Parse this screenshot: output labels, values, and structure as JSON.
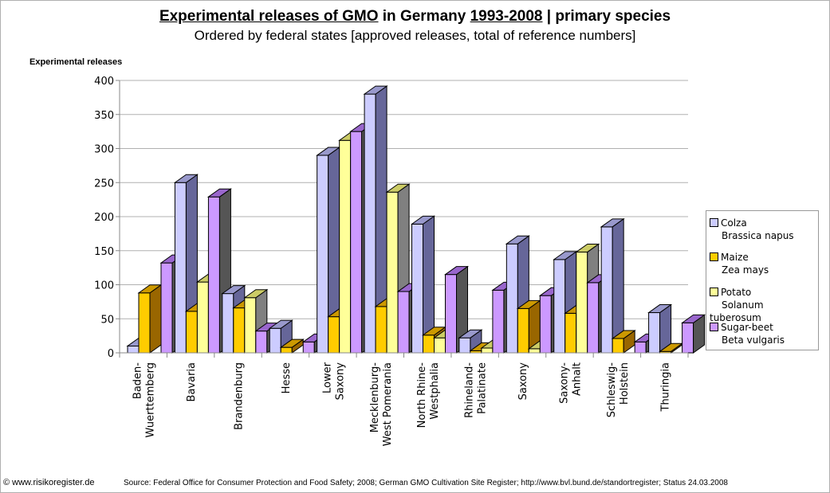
{
  "header": {
    "title_part1": "Experimental releases of GMO",
    "title_part2": " in Germany ",
    "title_part3": "1993-2008",
    "title_part4": " | primary species",
    "subtitle": "Ordered by federal states [approved releases, total of reference numbers]"
  },
  "footer": {
    "copyright": "© www.risikoregister.de",
    "source": "Source: Federal Office for Consumer Protection and Food Safety; 2008; German GMO Cultivation Site Register; http://www.bvl.bund.de/standortregister; Status 24.03.2008"
  },
  "chart_data": {
    "type": "bar",
    "style": "3d-clustered-column",
    "title": "Experimental releases of GMO in Germany 1993-2008 | primary species",
    "subtitle": "Ordered by federal states [approved releases, total of reference numbers]",
    "xlabel": "",
    "ylabel": "Experimental releases",
    "ylim": [
      0,
      400
    ],
    "yticks": [
      0,
      50,
      100,
      150,
      200,
      250,
      300,
      350,
      400
    ],
    "grid": true,
    "legend_position": "right",
    "categories": [
      [
        "Baden-",
        "Wuerttemberg"
      ],
      [
        "Bavaria"
      ],
      [
        "Brandenburg"
      ],
      [
        "Hesse"
      ],
      [
        "Lower",
        "Saxony"
      ],
      [
        "Mecklenburg-",
        "West Pomerania"
      ],
      [
        "North Rhine-",
        "Westphalia"
      ],
      [
        "Rhineland-",
        "Palatinate"
      ],
      [
        "Saxony"
      ],
      [
        "Saxony-",
        "Anhalt"
      ],
      [
        "Schleswig-",
        "Holstein"
      ],
      [
        "Thuringia"
      ]
    ],
    "series": [
      {
        "name": "Colza",
        "latin": "Brassica napus",
        "color": "#ccccff",
        "side": "#666699",
        "top": "#9999cc",
        "values": [
          10,
          250,
          87,
          36,
          290,
          380,
          189,
          22,
          160,
          137,
          185,
          59
        ]
      },
      {
        "name": "Maize",
        "latin": "Zea mays",
        "color": "#ffcc00",
        "side": "#996600",
        "top": "#cc9900",
        "values": [
          88,
          61,
          66,
          8,
          53,
          68,
          26,
          3,
          65,
          58,
          21,
          2
        ]
      },
      {
        "name": "Potato",
        "latin": "Solanum tuberosum",
        "color": "#ffff99",
        "side": "#808080",
        "top": "#cccc66",
        "values": [
          0,
          104,
          81,
          0,
          312,
          236,
          22,
          7,
          6,
          148,
          0,
          0
        ]
      },
      {
        "name": "Sugar-beet",
        "latin": "Beta vulgaris",
        "color": "#cc99ff",
        "side": "#555555",
        "top": "#9966cc",
        "values": [
          132,
          229,
          32,
          16,
          325,
          90,
          115,
          92,
          84,
          103,
          16,
          44
        ]
      }
    ]
  }
}
